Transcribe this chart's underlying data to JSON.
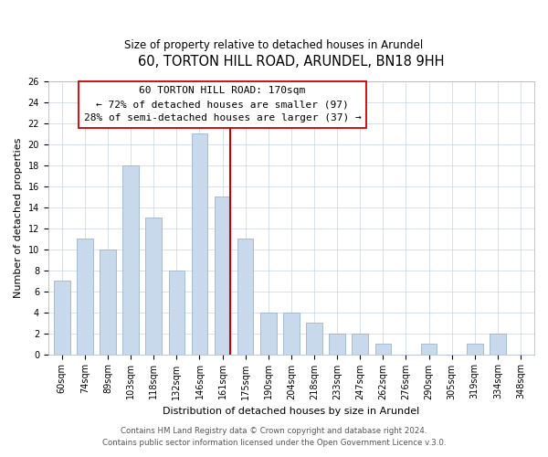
{
  "title": "60, TORTON HILL ROAD, ARUNDEL, BN18 9HH",
  "subtitle": "Size of property relative to detached houses in Arundel",
  "xlabel": "Distribution of detached houses by size in Arundel",
  "ylabel": "Number of detached properties",
  "bar_labels": [
    "60sqm",
    "74sqm",
    "89sqm",
    "103sqm",
    "118sqm",
    "132sqm",
    "146sqm",
    "161sqm",
    "175sqm",
    "190sqm",
    "204sqm",
    "218sqm",
    "233sqm",
    "247sqm",
    "262sqm",
    "276sqm",
    "290sqm",
    "305sqm",
    "319sqm",
    "334sqm",
    "348sqm"
  ],
  "bar_values": [
    7,
    11,
    10,
    18,
    13,
    8,
    21,
    15,
    11,
    4,
    4,
    3,
    2,
    2,
    1,
    0,
    1,
    0,
    1,
    2,
    0
  ],
  "bar_color": "#c9d9ec",
  "bar_edge_color": "#9ab5d0",
  "highlight_line_color": "#cc0000",
  "annotation_title": "60 TORTON HILL ROAD: 170sqm",
  "annotation_line1": "← 72% of detached houses are smaller (97)",
  "annotation_line2": "28% of semi-detached houses are larger (37) →",
  "annotation_box_color": "#ffffff",
  "annotation_box_edge_color": "#cc0000",
  "ylim": [
    0,
    26
  ],
  "yticks": [
    0,
    2,
    4,
    6,
    8,
    10,
    12,
    14,
    16,
    18,
    20,
    22,
    24,
    26
  ],
  "footer1": "Contains HM Land Registry data © Crown copyright and database right 2024.",
  "footer2": "Contains public sector information licensed under the Open Government Licence v.3.0.",
  "title_fontsize": 10.5,
  "subtitle_fontsize": 8.5,
  "axis_label_fontsize": 8,
  "tick_fontsize": 7,
  "annotation_title_fontsize": 8.5,
  "annotation_body_fontsize": 8,
  "footer_fontsize": 6.2,
  "bar_width": 0.7
}
